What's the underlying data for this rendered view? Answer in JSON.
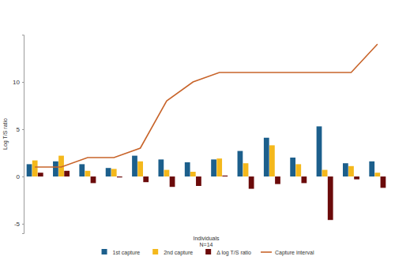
{
  "chart_data": {
    "type": "bar",
    "y_label": "Log T/S ratio",
    "x_label": "Individuals\nN=14",
    "categories": [
      null,
      null,
      null,
      null,
      null,
      null,
      null,
      null,
      null,
      null,
      null,
      null,
      null,
      null
    ],
    "ylim": [
      -6,
      15
    ],
    "yticks": [
      -5,
      0,
      5,
      10
    ],
    "grid": false,
    "legend": "bottom",
    "tick_labels": "y",
    "series": [
      {
        "name": "1st capture",
        "color": "#1c5f8c",
        "values": [
          1.3,
          1.6,
          1.3,
          0.9,
          2.2,
          1.8,
          1.5,
          1.8,
          2.7,
          4.1,
          2.0,
          5.3,
          1.4,
          1.6
        ]
      },
      {
        "name": "2nd capture",
        "color": "#f4b81c",
        "values": [
          1.7,
          2.2,
          0.6,
          0.8,
          1.6,
          0.7,
          0.5,
          1.9,
          1.4,
          3.3,
          1.3,
          0.7,
          1.1,
          0.4
        ]
      },
      {
        "name": "Δ log T/S ratio",
        "color": "#6b0a0a",
        "values": [
          0.4,
          0.6,
          -0.7,
          -0.1,
          -0.6,
          -1.1,
          -1.0,
          0.1,
          -1.3,
          -0.8,
          -0.7,
          -4.6,
          -0.3,
          -1.2
        ]
      },
      {
        "name": "Capture interval",
        "type": "line",
        "color": "#c8642a",
        "values": [
          1,
          1,
          2,
          2,
          3,
          8,
          10,
          11,
          11,
          11,
          11,
          11,
          11,
          14
        ]
      }
    ]
  }
}
